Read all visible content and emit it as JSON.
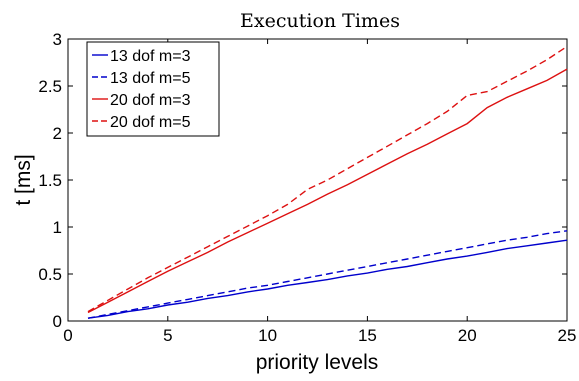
{
  "chart_data": {
    "type": "line",
    "title": "Execution Times",
    "xlabel": "priority levels",
    "ylabel": "t [ms]",
    "xlim": [
      0,
      25
    ],
    "ylim": [
      0,
      3
    ],
    "xticks": [
      "0",
      "5",
      "10",
      "15",
      "20",
      "25"
    ],
    "yticks": [
      "0",
      "0.5",
      "1",
      "1.5",
      "2",
      "2.5",
      "3"
    ],
    "grid": false,
    "legend_position": "top-left",
    "x": [
      1,
      2,
      3,
      4,
      5,
      6,
      7,
      8,
      9,
      10,
      11,
      12,
      13,
      14,
      15,
      16,
      17,
      18,
      19,
      20,
      21,
      22,
      23,
      24,
      25
    ],
    "series": [
      {
        "name": "13 dof m=3",
        "color": "#0000cc",
        "dash": "solid",
        "values": [
          0.03,
          0.06,
          0.1,
          0.13,
          0.17,
          0.2,
          0.24,
          0.27,
          0.31,
          0.34,
          0.38,
          0.41,
          0.44,
          0.48,
          0.51,
          0.55,
          0.58,
          0.62,
          0.66,
          0.69,
          0.73,
          0.77,
          0.8,
          0.83,
          0.86
        ]
      },
      {
        "name": "13 dof m=5",
        "color": "#0000cc",
        "dash": "dashed",
        "values": [
          0.03,
          0.07,
          0.11,
          0.15,
          0.19,
          0.23,
          0.27,
          0.31,
          0.35,
          0.38,
          0.42,
          0.46,
          0.5,
          0.54,
          0.58,
          0.62,
          0.66,
          0.7,
          0.74,
          0.78,
          0.82,
          0.86,
          0.89,
          0.93,
          0.96
        ]
      },
      {
        "name": "20 dof m=3",
        "color": "#dd1111",
        "dash": "solid",
        "values": [
          0.09,
          0.2,
          0.31,
          0.42,
          0.53,
          0.63,
          0.73,
          0.84,
          0.94,
          1.04,
          1.14,
          1.24,
          1.35,
          1.45,
          1.56,
          1.67,
          1.78,
          1.88,
          1.99,
          2.1,
          2.27,
          2.38,
          2.47,
          2.56,
          2.68
        ]
      },
      {
        "name": "20 dof m=5",
        "color": "#dd1111",
        "dash": "dashed",
        "values": [
          0.1,
          0.22,
          0.34,
          0.46,
          0.57,
          0.68,
          0.79,
          0.9,
          1.01,
          1.12,
          1.24,
          1.4,
          1.5,
          1.62,
          1.74,
          1.86,
          1.98,
          2.1,
          2.23,
          2.4,
          2.44,
          2.55,
          2.66,
          2.78,
          2.92
        ]
      }
    ]
  }
}
